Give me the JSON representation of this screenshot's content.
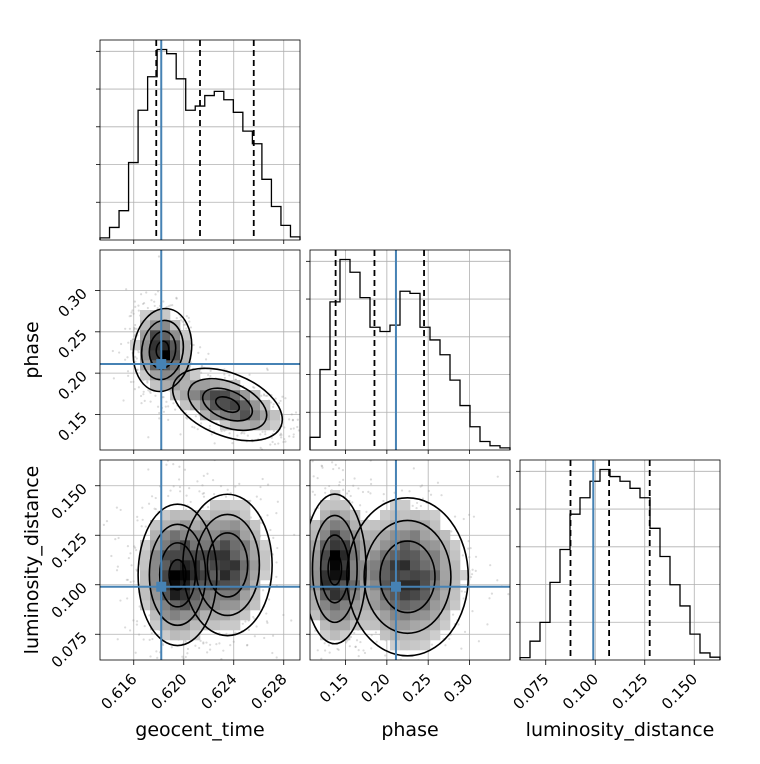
{
  "chart_data": {
    "type": "corner",
    "parameters": [
      "geocent_time",
      "phase",
      "luminosity_distance"
    ],
    "axis_labels": {
      "x": [
        "geocent_time",
        "phase",
        "luminosity_distance"
      ],
      "y": [
        "phase",
        "luminosity_distance"
      ]
    },
    "ranges": {
      "geocent_time": [
        0.6133,
        0.6293
      ],
      "phase": [
        0.107,
        0.349
      ],
      "luminosity_distance": [
        0.062,
        0.163
      ]
    },
    "ticks": {
      "geocent_time": [
        "0.616",
        "0.620",
        "0.624",
        "0.628"
      ],
      "phase": [
        "0.15",
        "0.20",
        "0.25",
        "0.30"
      ],
      "luminosity_distance": [
        "0.075",
        "0.100",
        "0.125",
        "0.150"
      ]
    },
    "truth": {
      "geocent_time": 0.6182,
      "phase": 0.211,
      "luminosity_distance": 0.099
    },
    "quantiles": {
      "geocent_time": [
        0.6178,
        0.6213,
        0.6256
      ],
      "phase": [
        0.138,
        0.185,
        0.245
      ],
      "luminosity_distance": [
        0.0875,
        0.107,
        0.1275
      ]
    },
    "marginals": {
      "geocent_time": [
        0.1,
        0.6,
        1.4,
        3.7,
        6.2,
        7.8,
        9.1,
        8.9,
        7.7,
        6.2,
        6.4,
        6.9,
        7.1,
        6.7,
        6.1,
        5.2,
        4.6,
        2.9,
        1.6,
        0.7,
        0.15
      ],
      "phase": [
        0.6,
        3.8,
        7.0,
        9.0,
        8.4,
        7.2,
        5.8,
        5.6,
        5.9,
        7.5,
        7.4,
        5.8,
        5.2,
        4.5,
        3.3,
        2.1,
        1.1,
        0.4,
        0.2,
        0.1
      ],
      "luminosity_distance": [
        0.1,
        0.8,
        1.6,
        3.3,
        4.7,
        6.2,
        6.9,
        7.6,
        8.1,
        7.8,
        7.6,
        7.3,
        6.9,
        5.6,
        4.4,
        3.2,
        2.3,
        1.1,
        0.3,
        0.12
      ]
    },
    "grid": true
  },
  "colors": {
    "truth": "#4682b4",
    "contour": "#000000",
    "quantile": "#000000",
    "scatter": "#999999",
    "grid": "#b0b0b0"
  }
}
